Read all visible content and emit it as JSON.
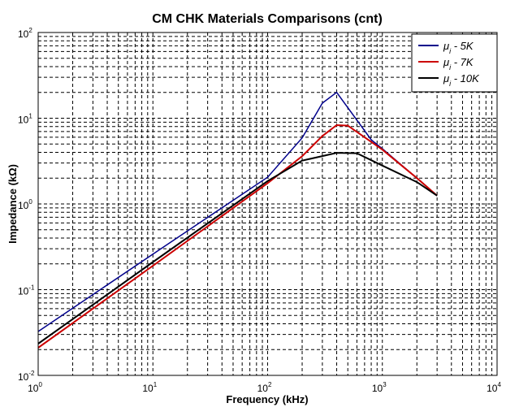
{
  "chart_data": {
    "type": "line",
    "title": "CM CHK  Materials Comparisons (cnt)",
    "xlabel": "Frequency (kHz)",
    "ylabel": "Impedance (kΩ)",
    "xscale": "log",
    "yscale": "log",
    "xlim": [
      1,
      10000
    ],
    "ylim": [
      0.01,
      100
    ],
    "x_ticks": [
      {
        "base": "10",
        "exp": "0"
      },
      {
        "base": "10",
        "exp": "1"
      },
      {
        "base": "10",
        "exp": "2"
      },
      {
        "base": "10",
        "exp": "3"
      },
      {
        "base": "10",
        "exp": "4"
      }
    ],
    "y_ticks": [
      {
        "base": "10",
        "exp": "-2"
      },
      {
        "base": "10",
        "exp": "-1"
      },
      {
        "base": "10",
        "exp": "0"
      },
      {
        "base": "10",
        "exp": "1"
      },
      {
        "base": "10",
        "exp": "2"
      }
    ],
    "grid": true,
    "legend_placement": "top-right",
    "series": [
      {
        "name": "μ_i - 5K",
        "label_sym": "μ",
        "label_sub": "i",
        "label_rest": " - 5K",
        "color": "#00008b",
        "x": [
          1,
          10,
          100,
          200,
          300,
          400,
          800,
          1000,
          2000,
          3000
        ],
        "y": [
          0.0325,
          0.26,
          2.05,
          5.9,
          15,
          20,
          5.6,
          4.4,
          2.0,
          1.25
        ]
      },
      {
        "name": "μ_i - 7K",
        "label_sym": "μ",
        "label_sub": "i",
        "label_rest": " - 7K",
        "color": "#cc0000",
        "x": [
          1,
          10,
          100,
          200,
          300,
          400,
          500,
          1000,
          2000,
          3000
        ],
        "y": [
          0.021,
          0.19,
          1.75,
          3.6,
          6.2,
          8.3,
          8.2,
          4.3,
          2.0,
          1.25
        ]
      },
      {
        "name": "μ_i - 10K",
        "label_sym": "μ",
        "label_sub": "i",
        "label_rest": " - 10K",
        "color": "#000000",
        "x": [
          1,
          10,
          100,
          200,
          400,
          600,
          1000,
          2000,
          3000
        ],
        "y": [
          0.0234,
          0.21,
          1.85,
          3.2,
          3.95,
          3.9,
          2.8,
          1.8,
          1.25
        ]
      }
    ]
  }
}
